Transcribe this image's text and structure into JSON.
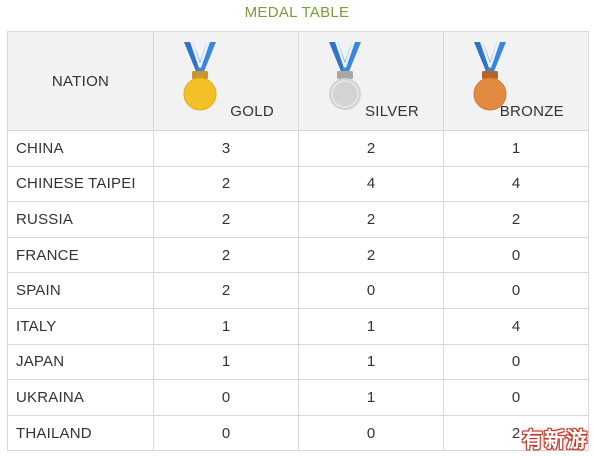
{
  "title": "MEDAL TABLE",
  "header": {
    "nation": "NATION",
    "gold": "GOLD",
    "silver": "SILVER",
    "bronze": "BRONZE"
  },
  "colors": {
    "title": "#7a9a3c",
    "ribbon": "#2f74c9",
    "gold": "#f4c028",
    "silver": "#d3d3d3",
    "bronze": "#e28a40"
  },
  "icons": [
    "gold-medal-icon",
    "silver-medal-icon",
    "bronze-medal-icon"
  ],
  "rows": [
    {
      "nation": "CHINA",
      "gold": "3",
      "silver": "2",
      "bronze": "1"
    },
    {
      "nation": "CHINESE TAIPEI",
      "gold": "2",
      "silver": "4",
      "bronze": "4"
    },
    {
      "nation": "RUSSIA",
      "gold": "2",
      "silver": "2",
      "bronze": "2"
    },
    {
      "nation": "FRANCE",
      "gold": "2",
      "silver": "2",
      "bronze": "0"
    },
    {
      "nation": "SPAIN",
      "gold": "2",
      "silver": "0",
      "bronze": "0"
    },
    {
      "nation": "ITALY",
      "gold": "1",
      "silver": "1",
      "bronze": "4"
    },
    {
      "nation": "JAPAN",
      "gold": "1",
      "silver": "1",
      "bronze": "0"
    },
    {
      "nation": "UKRAINA",
      "gold": "0",
      "silver": "1",
      "bronze": "0"
    },
    {
      "nation": "THAILAND",
      "gold": "0",
      "silver": "0",
      "bronze": "2"
    }
  ],
  "watermark": "有新游"
}
